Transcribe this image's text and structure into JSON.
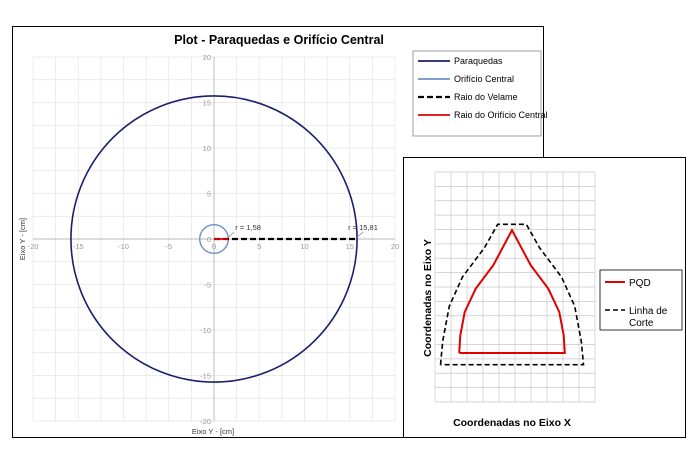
{
  "chart_data": [
    {
      "type": "line",
      "title": "Plot - Paraquedas e Orifício  Central",
      "xlabel": "Eixo Y - [cm]",
      "ylabel": "Eixo Y - [cm]",
      "xlim": [
        -20,
        20
      ],
      "ylim": [
        -20,
        20
      ],
      "x_ticks": [
        "-20",
        "-15",
        "-10",
        "-5",
        "0",
        "5",
        "10",
        "15",
        "20"
      ],
      "y_ticks": [
        "20",
        "15",
        "10",
        "5",
        "0",
        "-5",
        "-10",
        "-15",
        "-20"
      ],
      "grid": true,
      "legend_position": "top-right",
      "series": [
        {
          "name": "Paraquedas",
          "shape": "circle",
          "center": [
            0,
            0
          ],
          "radius": 15.81,
          "color": "#1a1f6e",
          "style": "solid"
        },
        {
          "name": "Orifício Central",
          "shape": "circle",
          "center": [
            0,
            0
          ],
          "radius": 1.58,
          "color": "#6f8fc8",
          "style": "solid"
        },
        {
          "name": "Raio do Velame",
          "x": [
            0,
            15.81
          ],
          "y": [
            0,
            0
          ],
          "color": "#000000",
          "style": "dashed"
        },
        {
          "name": "Raio do Orifício Central",
          "x": [
            0,
            1.58
          ],
          "y": [
            0,
            0
          ],
          "color": "#e00000",
          "style": "solid"
        }
      ],
      "annotations": [
        {
          "text": "r = 1,58",
          "x": 1.58,
          "y": 0
        },
        {
          "text": "r = 15,81",
          "x": 15.81,
          "y": 0
        }
      ]
    },
    {
      "type": "line",
      "xlabel": "Coordenadas no Eixo X",
      "ylabel": "Coordenadas no Eixo Y",
      "grid": true,
      "legend_position": "right",
      "series": [
        {
          "name": "PQD",
          "color": "#e00000",
          "style": "solid",
          "x": [
            -4.8,
            -4.7,
            -4.3,
            -3.3,
            -1.7,
            0,
            1.7,
            3.3,
            4.3,
            4.7,
            4.8,
            -4.8
          ],
          "y": [
            0,
            1.5,
            3.5,
            5.5,
            7.5,
            10.5,
            7.5,
            5.5,
            3.5,
            1.5,
            0,
            0
          ]
        },
        {
          "name": "Linha de Corte",
          "color": "#000000",
          "style": "dashed",
          "x": [
            -6.5,
            -6.3,
            -5.7,
            -4.5,
            -2.5,
            -1.3,
            1.3,
            2.5,
            4.5,
            5.7,
            6.3,
            6.5,
            -6.5
          ],
          "y": [
            -1,
            1,
            4,
            6.5,
            9,
            11,
            11,
            9,
            6.5,
            4,
            1,
            -1,
            -1
          ]
        }
      ]
    }
  ]
}
